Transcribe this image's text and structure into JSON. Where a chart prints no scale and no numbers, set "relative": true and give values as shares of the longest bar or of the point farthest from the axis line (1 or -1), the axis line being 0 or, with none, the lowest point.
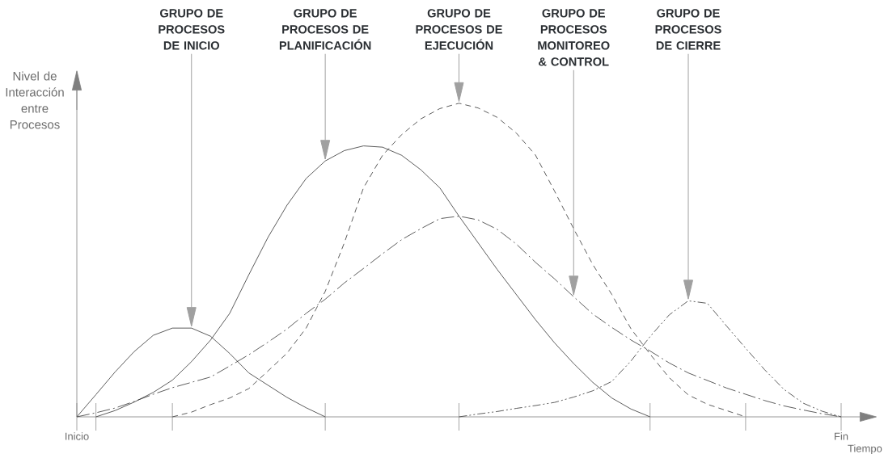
{
  "chart_data": {
    "type": "line",
    "relative": true,
    "xlabel": "Tiempo",
    "ylabel": "Nivel de Interacción entre Procesos",
    "categories": [
      "Inicio",
      null,
      null,
      null,
      null,
      null,
      null,
      null,
      null,
      null,
      null,
      null,
      null,
      null,
      null,
      null,
      null,
      null,
      null,
      null,
      null,
      null,
      null,
      null,
      null,
      null,
      null,
      null,
      null,
      null,
      null,
      null,
      null,
      null,
      null,
      null,
      null,
      null,
      null,
      null,
      "Fin"
    ],
    "marker": "none",
    "series": [
      {
        "color": "#333333",
        "line_style": "solid",
        "values": [
          0,
          0.071,
          0.143,
          0.208,
          0.26,
          0.283,
          0.283,
          0.257,
          0.202,
          0.14,
          0.101,
          0.062,
          0.029,
          0,
          null,
          null,
          null,
          null,
          null,
          null,
          null,
          null,
          null,
          null,
          null,
          null,
          null,
          null,
          null,
          null,
          null,
          null,
          null,
          null,
          null,
          null,
          null,
          null,
          null,
          null,
          null
        ]
      },
      {
        "color": "#333333",
        "line_style": "solid",
        "values": [
          null,
          0,
          0.02,
          0.047,
          0.078,
          0.117,
          0.176,
          0.245,
          0.33,
          0.453,
          0.572,
          0.675,
          0.76,
          0.816,
          0.849,
          0.864,
          0.86,
          0.834,
          0.788,
          0.73,
          0.64,
          0.555,
          0.47,
          0.39,
          0.31,
          0.236,
          0.17,
          0.11,
          0.06,
          0.025,
          0,
          null,
          null,
          null,
          null,
          null,
          null,
          null,
          null,
          null,
          null
        ]
      },
      {
        "color": "#333333",
        "line_style": "dashed",
        "values": [
          null,
          null,
          null,
          null,
          null,
          0,
          0.015,
          0.039,
          0.06,
          0.09,
          0.146,
          0.203,
          0.283,
          0.4,
          0.555,
          0.73,
          0.834,
          0.9,
          0.95,
          0.983,
          1,
          0.985,
          0.955,
          0.905,
          0.835,
          0.72,
          0.6,
          0.486,
          0.39,
          0.281,
          0.2,
          0.125,
          0.07,
          0.04,
          0.02,
          0,
          null,
          null,
          null,
          null,
          null
        ]
      },
      {
        "color": "#333333",
        "line_style": "dashdot",
        "values": [
          0,
          0.013,
          0.028,
          0.049,
          0.072,
          0.093,
          0.11,
          0.127,
          0.162,
          0.198,
          0.238,
          0.28,
          0.33,
          0.375,
          0.427,
          0.473,
          0.52,
          0.565,
          0.6,
          0.632,
          0.64,
          0.628,
          0.598,
          0.551,
          0.493,
          0.44,
          0.383,
          0.328,
          0.285,
          0.245,
          0.21,
          0.172,
          0.14,
          0.116,
          0.092,
          0.072,
          0.052,
          0.035,
          0.022,
          0.01,
          0
        ]
      },
      {
        "color": "#333333",
        "line_style": "dashdotdot",
        "values": [
          null,
          null,
          null,
          null,
          null,
          null,
          null,
          null,
          null,
          null,
          null,
          null,
          null,
          null,
          null,
          null,
          null,
          null,
          null,
          null,
          0,
          0.009,
          0.017,
          0.027,
          0.036,
          0.046,
          0.063,
          0.083,
          0.113,
          0.178,
          0.256,
          0.325,
          0.37,
          0.362,
          0.29,
          0.219,
          0.15,
          0.088,
          0.044,
          0.018,
          0
        ]
      }
    ],
    "annotations": [
      "GRUPO DE PROCESOS DE INICIO",
      "GRUPO DE PROCESOS DE PLANIFICACIÓN",
      "GRUPO DE PROCESOS DE EJECUCIÓN",
      "GRUPO DE PROCESOS MONITOREO & CONTROL",
      "GRUPO DE PROCESOS DE CIERRE"
    ]
  }
}
